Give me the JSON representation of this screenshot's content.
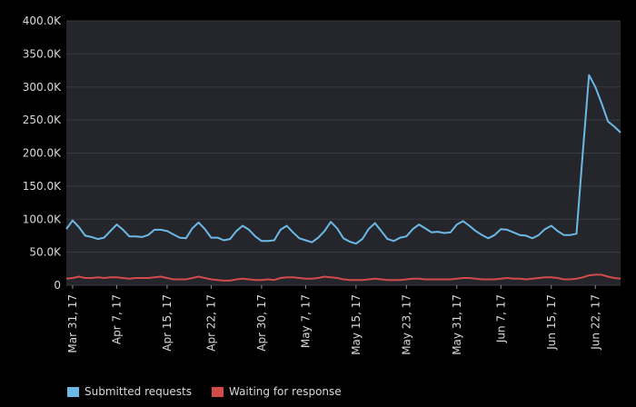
{
  "chart_data": {
    "type": "line",
    "title": "",
    "xlabel": "",
    "ylabel": "",
    "ylim": [
      0,
      400000
    ],
    "y_ticks": [
      0,
      50000,
      100000,
      150000,
      200000,
      250000,
      300000,
      350000,
      400000
    ],
    "y_tick_labels": [
      "0",
      "50.0K",
      "100.0K",
      "150.0K",
      "200.0K",
      "250.0K",
      "300.0K",
      "350.0K",
      "400.0K"
    ],
    "x_tick_labels": [
      "Mar 31, 17",
      "Apr 7, 17",
      "Apr 15, 17",
      "Apr 22, 17",
      "Apr 30, 17",
      "May 7, 17",
      "May 15, 17",
      "May 23, 17",
      "May 31, 17",
      "Jun 7, 17",
      "Jun 15, 17",
      "Jun 22, 17"
    ],
    "x_tick_index": [
      1,
      8,
      16,
      23,
      31,
      38,
      46,
      54,
      62,
      69,
      77,
      84
    ],
    "grid": true,
    "legend_position": "bottom-left",
    "background": "#25262b",
    "series": [
      {
        "name": "Submitted requests",
        "color": "#6cb8e6",
        "values": [
          85000,
          98000,
          88000,
          75000,
          73000,
          70000,
          72000,
          82000,
          92000,
          84000,
          74000,
          74000,
          73000,
          76000,
          84000,
          84000,
          82000,
          77000,
          72000,
          71000,
          86000,
          95000,
          85000,
          72000,
          72000,
          68000,
          70000,
          82000,
          90000,
          84000,
          74000,
          67000,
          67000,
          68000,
          84000,
          90000,
          80000,
          71000,
          68000,
          65000,
          72000,
          82000,
          96000,
          86000,
          71000,
          66000,
          63000,
          70000,
          85000,
          94000,
          82000,
          70000,
          67000,
          72000,
          74000,
          85000,
          92000,
          86000,
          80000,
          81000,
          79000,
          80000,
          92000,
          97000,
          90000,
          82000,
          76000,
          71000,
          76000,
          85000,
          84000,
          80000,
          76000,
          75000,
          71000,
          76000,
          85000,
          90000,
          82000,
          76000,
          76000,
          78000,
          200000,
          318000,
          300000,
          275000,
          248000,
          240000,
          231000
        ]
      },
      {
        "name": "Waiting for response",
        "color": "#d24b4b",
        "values": [
          10000,
          11000,
          13000,
          11000,
          11000,
          12000,
          11000,
          12000,
          12000,
          11000,
          10000,
          11000,
          11000,
          11000,
          12000,
          13000,
          11000,
          9000,
          9000,
          9000,
          11000,
          13000,
          11000,
          9000,
          8000,
          7000,
          7000,
          9000,
          10000,
          9000,
          8000,
          8000,
          9000,
          8000,
          11000,
          12000,
          12000,
          11000,
          10000,
          10000,
          11000,
          13000,
          12000,
          11000,
          9000,
          8000,
          8000,
          8000,
          9000,
          10000,
          9000,
          8000,
          8000,
          8000,
          9000,
          10000,
          10000,
          9000,
          9000,
          9000,
          9000,
          9000,
          10000,
          11000,
          11000,
          10000,
          9000,
          9000,
          9000,
          10000,
          11000,
          10000,
          10000,
          9000,
          10000,
          11000,
          12000,
          12000,
          11000,
          9000,
          9000,
          10000,
          12000,
          15000,
          16000,
          16000,
          13000,
          11000,
          10000
        ]
      }
    ]
  }
}
